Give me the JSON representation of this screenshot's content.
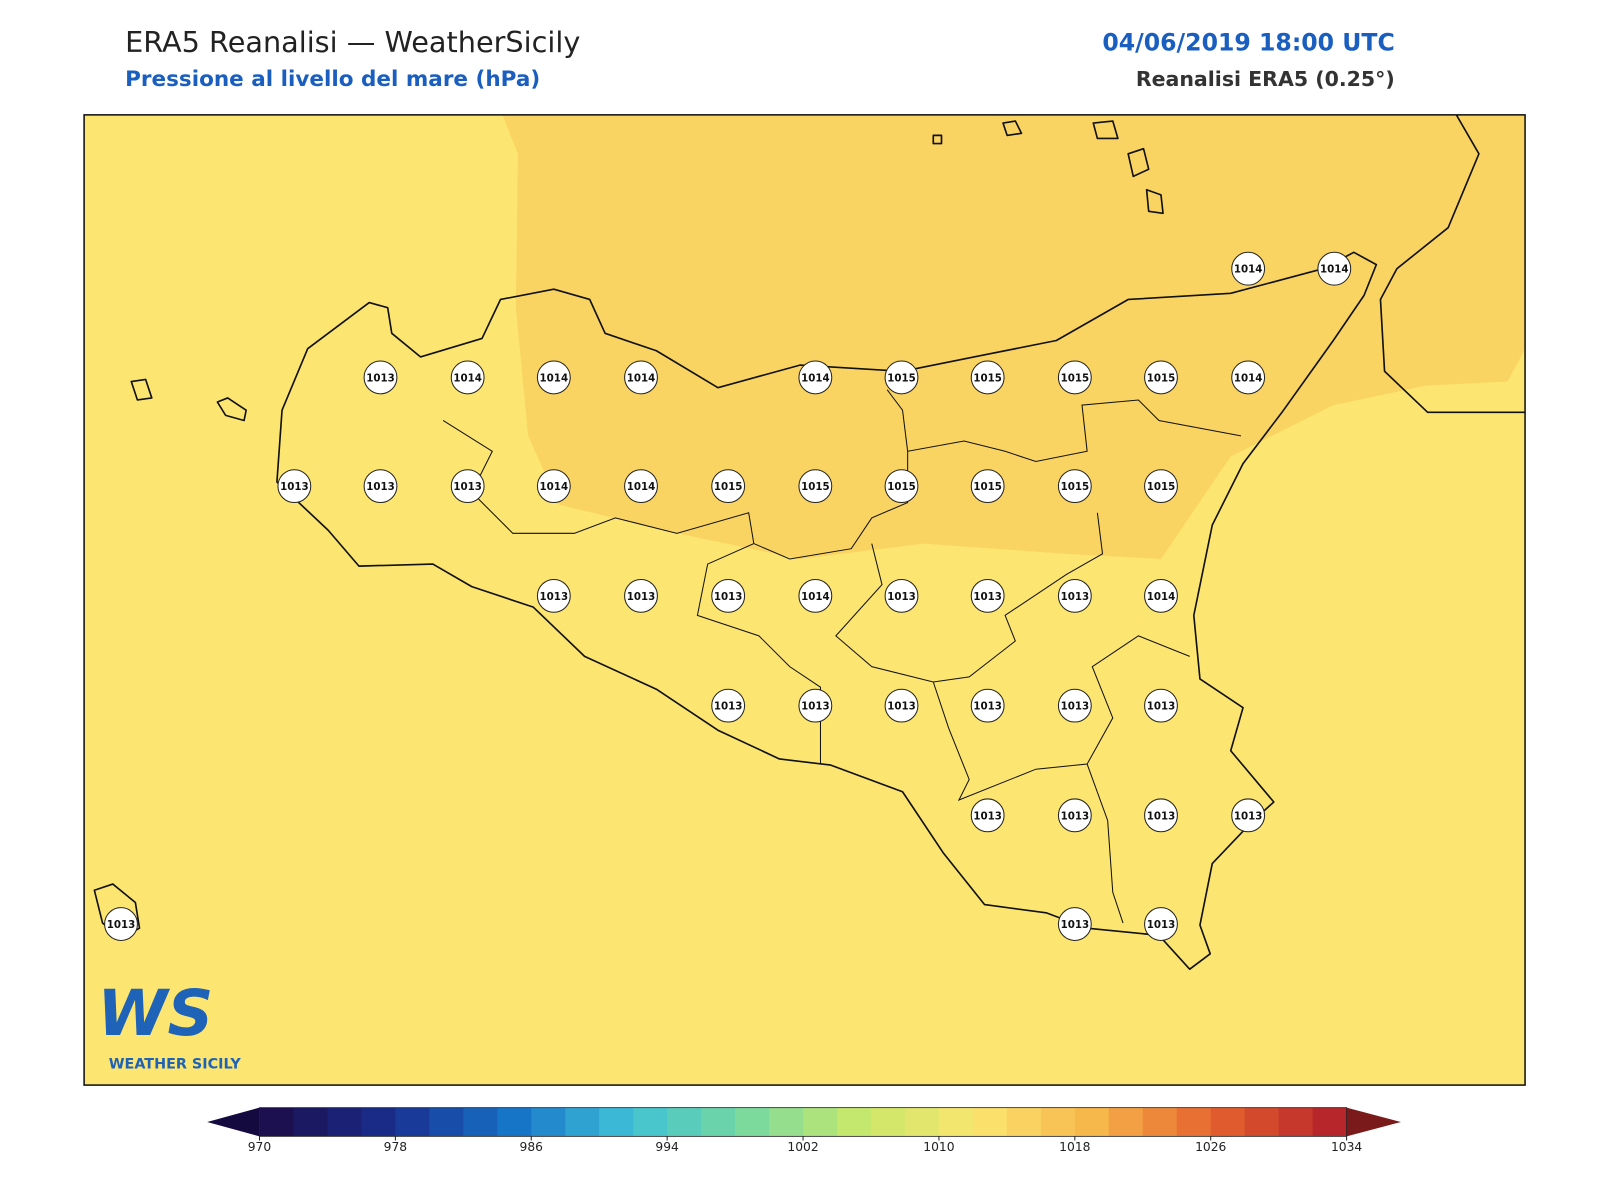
{
  "header": {
    "title": "ERA5 Reanalisi — WeatherSicily",
    "subtitle": "Pressione al livello del mare (hPa)",
    "datetime": "04/06/2019 18:00 UTC",
    "source": "Reanalisi ERA5 (0.25°)"
  },
  "stations": [
    1014,
    1014,
    1013,
    1014,
    1014,
    1014,
    1014,
    1015,
    1015,
    1015,
    1015,
    1014,
    1013,
    1013,
    1013,
    1014,
    1014,
    1015,
    1015,
    1015,
    1015,
    1015,
    1015,
    1013,
    1013,
    1013,
    1014,
    1013,
    1013,
    1013,
    1014,
    1013,
    1013,
    1013,
    1013,
    1013,
    1013,
    1013,
    1013,
    1013,
    1013,
    1013,
    1013,
    1013
  ],
  "colorbar": {
    "range": [
      970,
      1034
    ],
    "ticks": [
      970,
      978,
      986,
      994,
      1002,
      1010,
      1018,
      1026,
      1034
    ]
  },
  "logo": {
    "mark": "WS",
    "name": "WEATHER SICILY"
  }
}
